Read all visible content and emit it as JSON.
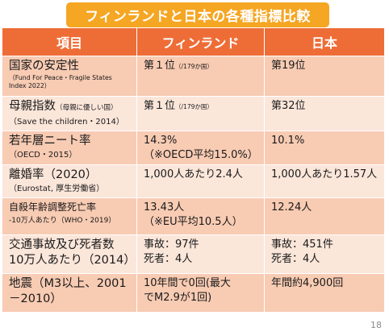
{
  "title": "フィンランドと日本の各種指標比較",
  "headers": {
    "item": "項目",
    "finland": "フィンランド",
    "japan": "日本"
  },
  "rows": [
    {
      "item_lines": [
        "国家の安定性"
      ],
      "source_small": [
        "（Fund For Peace・Fragile States",
        "Index 2022）"
      ],
      "finland": {
        "main": "第１位",
        "small": "（/179か国）"
      },
      "japan": {
        "main": "第19位"
      }
    },
    {
      "item_main": "母親指数",
      "item_inline_small": "（母親に優しい国）",
      "source": "（Save the children・2014）",
      "finland": {
        "main": "第１位",
        "small": "（/179か国）"
      },
      "japan": {
        "main": "第32位"
      }
    },
    {
      "item_lines": [
        "若年層ニート率"
      ],
      "source": "（OECD・2015）",
      "finland": {
        "lines": [
          "14.3%",
          "（※OECD平均15.0%）"
        ]
      },
      "japan": {
        "lines": [
          "10.1%"
        ]
      }
    },
    {
      "item_lines": [
        "離婚率（2020）"
      ],
      "source": "（Eurostat, 厚生労働省）",
      "finland": {
        "lines": [
          "1,000人あたり2.4人"
        ]
      },
      "japan": {
        "lines": [
          "1,000人あたり1.57人"
        ]
      }
    },
    {
      "item_lines": [
        "自殺年齢調整死亡率"
      ],
      "source": "-10万人あたり（WHO・2019）",
      "finland": {
        "lines": [
          "13.43人",
          "（※EU平均10.5人）"
        ]
      },
      "japan": {
        "lines": [
          "12.24人"
        ]
      }
    },
    {
      "item_lines": [
        "交通事故及び死者数",
        "10万人あたり（2014）"
      ],
      "finland": {
        "lines": [
          "事故：97件",
          "死者：4人"
        ]
      },
      "japan": {
        "lines": [
          "事故：451件",
          "死者：4人"
        ]
      }
    },
    {
      "item_lines": [
        "地震（M3以上、2001",
        "－2010）"
      ],
      "finland": {
        "lines": [
          "10年間で0回(最大",
          "でM2.9が1回)"
        ]
      },
      "japan": {
        "lines": [
          "年間約4,900回"
        ]
      }
    }
  ],
  "page_number": "18",
  "colors": {
    "banner": "#f5a623",
    "header": "#ee6d37",
    "row_dark": "#f8cbb3",
    "row_light": "#fbe6da"
  }
}
